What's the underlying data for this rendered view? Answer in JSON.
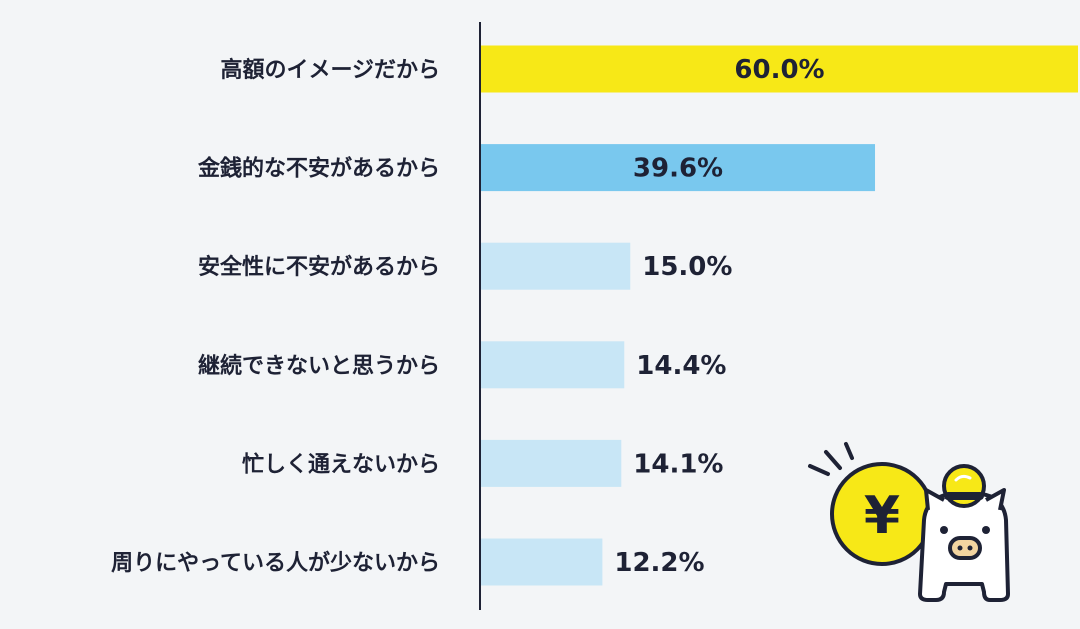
{
  "chart_data": {
    "type": "bar",
    "orientation": "horizontal",
    "categories": [
      "高額のイメージだから",
      "金銭的な不安があるから",
      "安全性に不安があるから",
      "継続できないと思うから",
      "忙しく通えないから",
      "周りにやっている人が少ないから"
    ],
    "values": [
      60.0,
      39.6,
      15.0,
      14.4,
      14.1,
      12.2
    ],
    "value_labels": [
      "60.0%",
      "39.6%",
      "15.0%",
      "14.4%",
      "14.1%",
      "12.2%"
    ],
    "bar_colors": [
      "#f7e817",
      "#79c8ee",
      "#c8e6f6",
      "#c8e6f6",
      "#c8e6f6",
      "#c8e6f6"
    ],
    "xlim": [
      0,
      60
    ],
    "grid": false,
    "legend": "none"
  },
  "colors": {
    "background": "#f3f5f7",
    "axis": "#1e2235",
    "text": "#1e2235",
    "coin": "#f7e817",
    "pig": "#ffffff",
    "pig_snout": "#f2d4a0"
  },
  "illustration": {
    "icon": "piggy-bank-yen-coin-icon",
    "coin_symbol": "¥"
  }
}
